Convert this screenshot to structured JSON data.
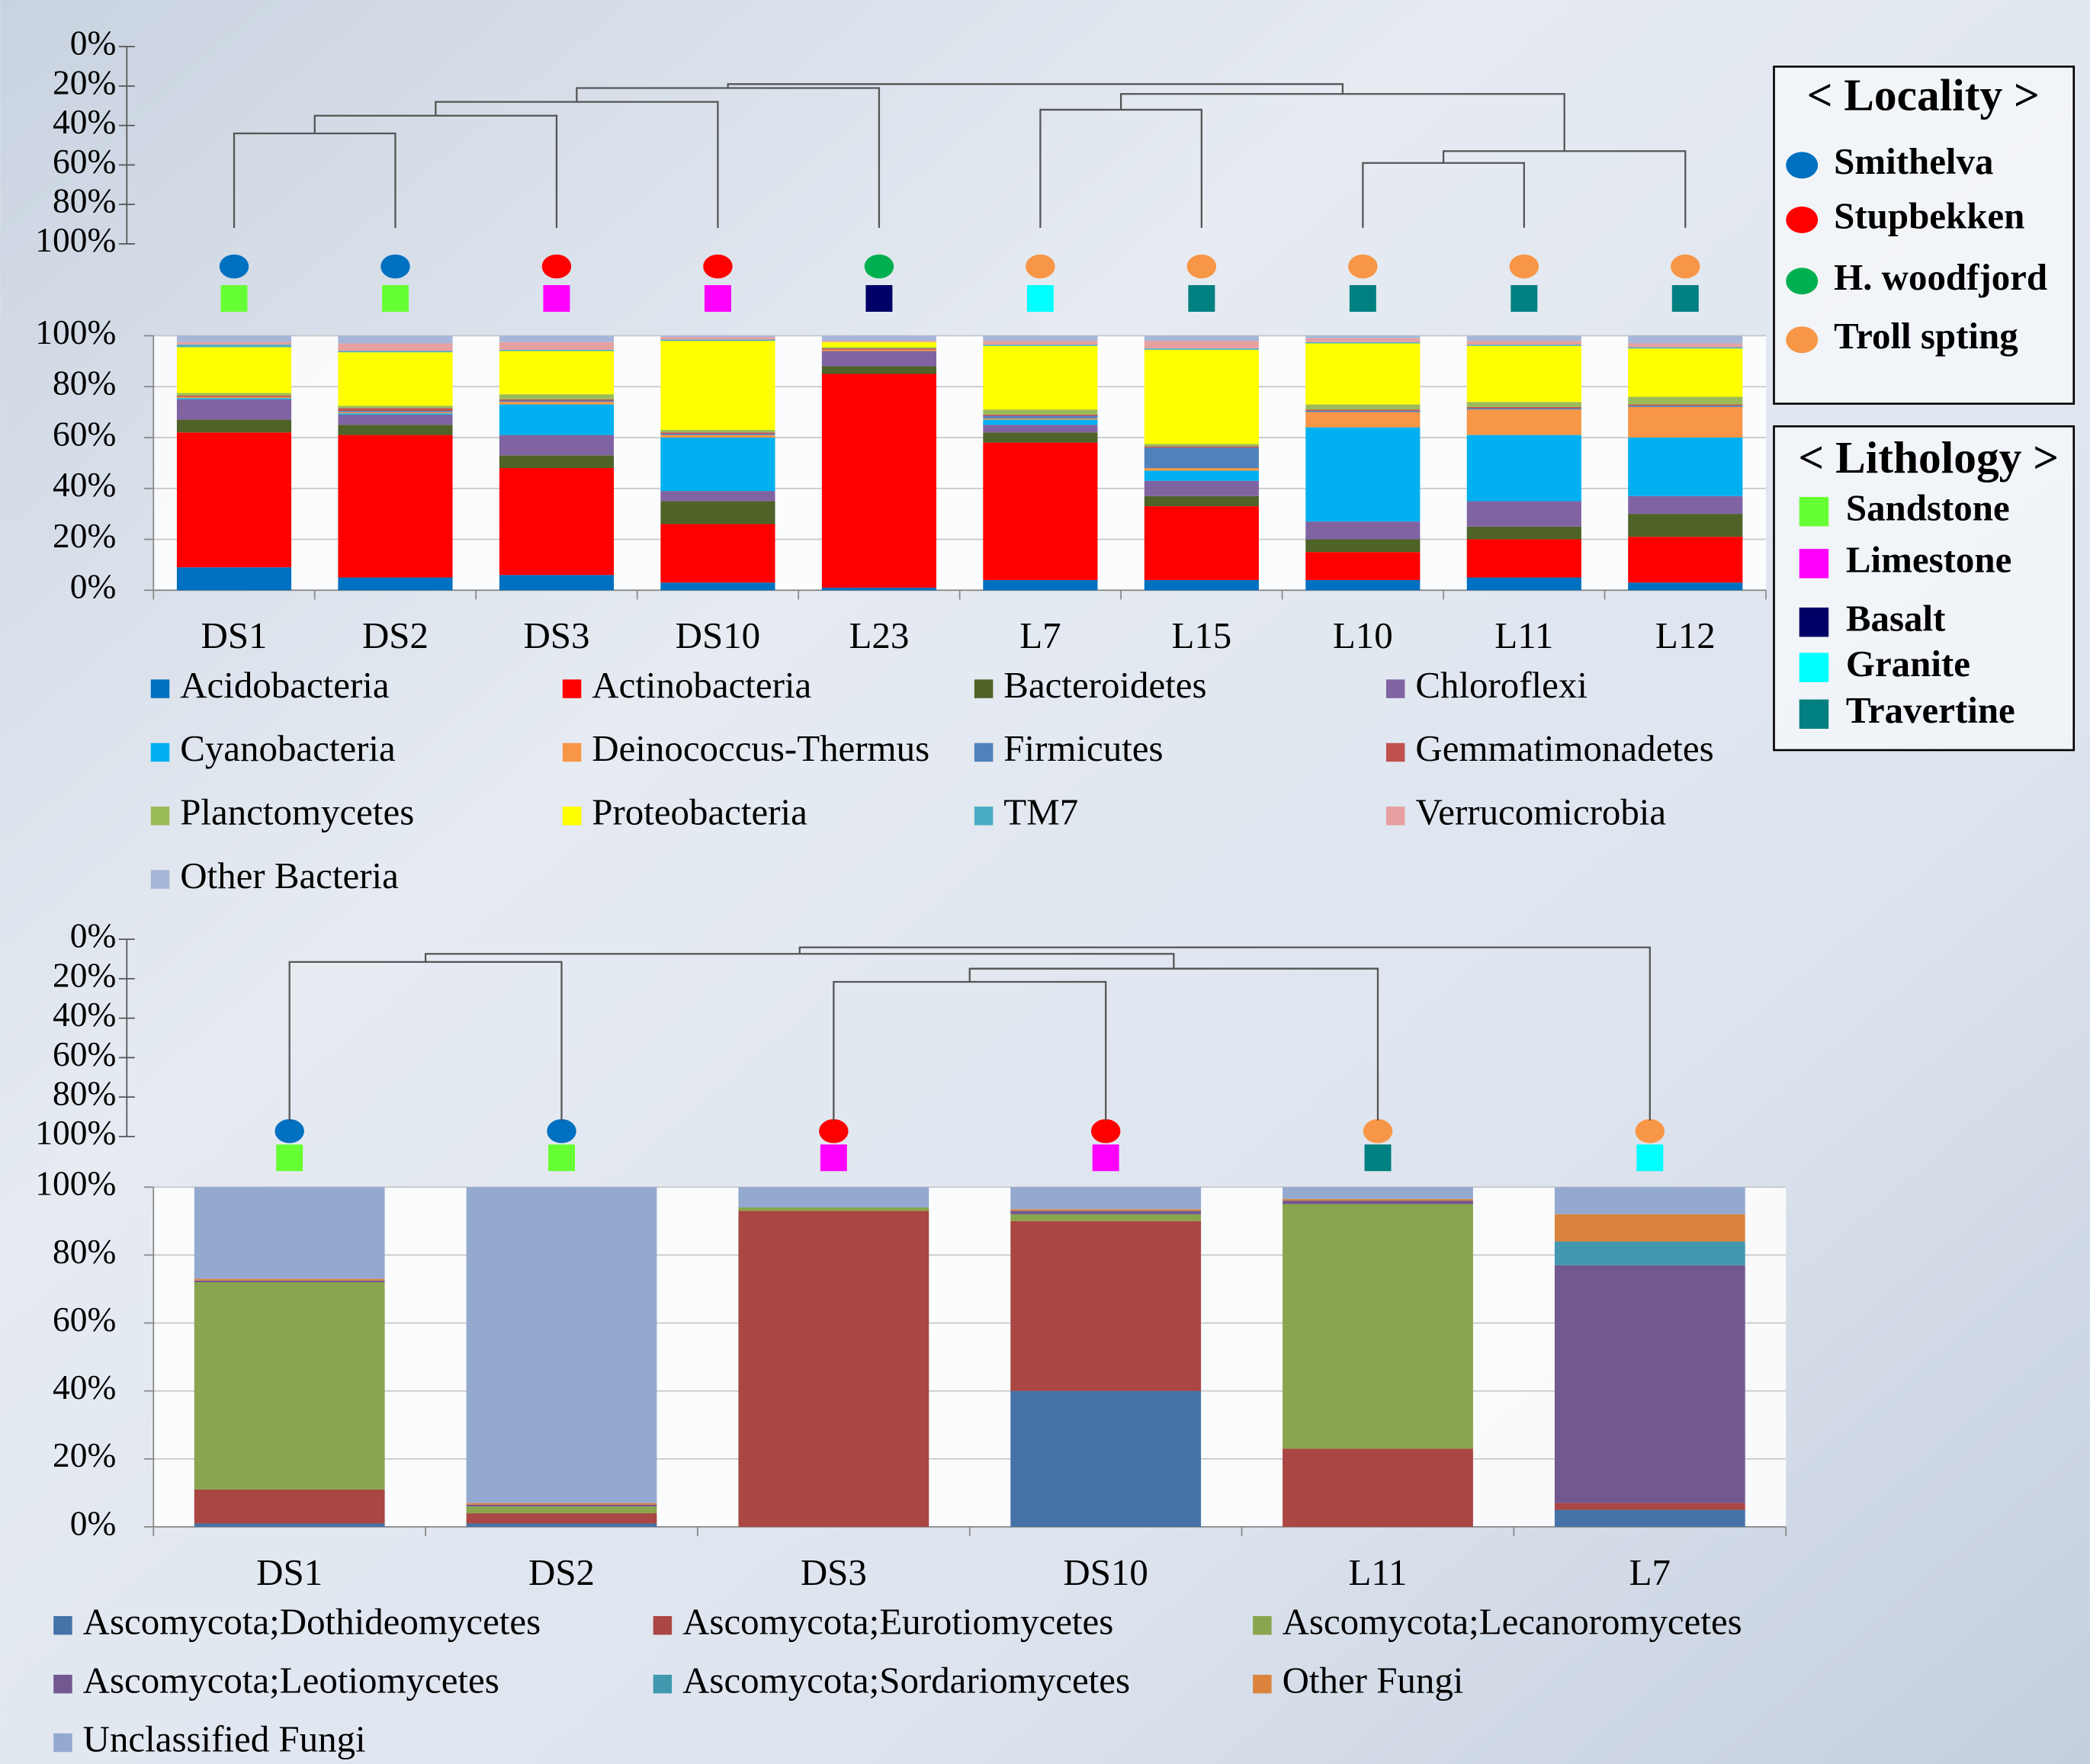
{
  "chart_data": [
    {
      "type": "bar",
      "stacked": true,
      "categories": [
        "DS1",
        "DS2",
        "DS3",
        "DS10",
        "L23",
        "L7",
        "L15",
        "L10",
        "L11",
        "L12"
      ],
      "series": [
        {
          "name": "Acidobacteria",
          "color": "#0070c0",
          "values": [
            9,
            5,
            6,
            3,
            1,
            4,
            4,
            4,
            5,
            3
          ]
        },
        {
          "name": "Actinobacteria",
          "color": "#ff0000",
          "values": [
            53,
            56,
            42,
            23,
            84,
            54,
            29,
            11,
            15,
            18
          ]
        },
        {
          "name": "Bacteroidetes",
          "color": "#4f6228",
          "values": [
            5,
            4,
            5,
            9,
            3,
            4,
            4,
            5,
            5,
            9
          ]
        },
        {
          "name": "Chloroflexi",
          "color": "#8064a2",
          "values": [
            8,
            4,
            8,
            4,
            6,
            3,
            6,
            7,
            10,
            7
          ]
        },
        {
          "name": "Cyanobacteria",
          "color": "#00b0f0",
          "values": [
            0.5,
            0.5,
            12,
            21,
            0,
            2,
            4,
            37,
            26,
            23
          ]
        },
        {
          "name": "Deinococcus-Thermus",
          "color": "#f79646",
          "values": [
            0.5,
            0.5,
            1,
            1,
            0.5,
            0.5,
            1,
            6,
            10,
            12
          ]
        },
        {
          "name": "Firmicutes",
          "color": "#4f81bd",
          "values": [
            0,
            0.5,
            0.5,
            0.5,
            0,
            1,
            8,
            0.5,
            0.5,
            0.5
          ]
        },
        {
          "name": "Gemmatimonadetes",
          "color": "#c0504d",
          "values": [
            0.5,
            1,
            0.5,
            0.5,
            0.5,
            0.5,
            0.5,
            0.5,
            0.5,
            0.5
          ]
        },
        {
          "name": "Planctomycetes",
          "color": "#9bbb59",
          "values": [
            1,
            1,
            2,
            1,
            0.5,
            2,
            1,
            2,
            2,
            3
          ]
        },
        {
          "name": "Proteobacteria",
          "color": "#ffff00",
          "values": [
            18,
            21,
            17,
            35,
            2,
            25,
            37,
            24,
            22,
            19
          ]
        },
        {
          "name": "TM7",
          "color": "#4bacc6",
          "values": [
            1,
            0.5,
            0.5,
            0.5,
            0,
            0.5,
            0.5,
            0.5,
            0.5,
            0.5
          ]
        },
        {
          "name": "Verrucomicrobia",
          "color": "#e6a0a0",
          "values": [
            1,
            3,
            3,
            1,
            0.5,
            1.5,
            3,
            1.5,
            1.5,
            1.5
          ]
        },
        {
          "name": "Other Bacteria",
          "color": "#a6b6d8",
          "values": [
            2.5,
            3,
            2.5,
            0.5,
            2,
            2,
            2,
            1,
            2,
            3
          ]
        }
      ],
      "ylim": [
        0,
        100
      ],
      "yticks": [
        {
          "value": 0,
          "label": "0%"
        },
        {
          "value": 20,
          "label": "20%"
        },
        {
          "value": 40,
          "label": "40%"
        },
        {
          "value": 60,
          "label": "60%"
        },
        {
          "value": 80,
          "label": "80%"
        },
        {
          "value": 100,
          "label": "100%"
        }
      ],
      "grid": true,
      "legend": "bottom",
      "localities": [
        "Smithelva",
        "Smithelva",
        "Stupbekken",
        "Stupbekken",
        "H. woodfjord",
        "Troll spting",
        "Troll spting",
        "Troll spting",
        "Troll spting",
        "Troll spting"
      ],
      "lithologies": [
        "Sandstone",
        "Sandstone",
        "Limestone",
        "Limestone",
        "Basalt",
        "Granite",
        "Travertine",
        "Travertine",
        "Travertine",
        "Travertine"
      ],
      "dendrogram": {
        "ylim": [
          0,
          100
        ],
        "inverted": true,
        "yticks": [
          {
            "value": 0,
            "label": "0%"
          },
          {
            "value": 20,
            "label": "20%"
          },
          {
            "value": 40,
            "label": "40%"
          },
          {
            "value": 60,
            "label": "60%"
          },
          {
            "value": 80,
            "label": "80%"
          },
          {
            "value": 100,
            "label": "100%"
          }
        ],
        "merges": [
          {
            "nodes": [
              0,
              1
            ],
            "height": 44
          },
          {
            "nodes": [
              10,
              2
            ],
            "height": 35
          },
          {
            "nodes": [
              11,
              3
            ],
            "height": 28
          },
          {
            "nodes": [
              12,
              4
            ],
            "height": 21
          },
          {
            "nodes": [
              5,
              6
            ],
            "height": 32
          },
          {
            "nodes": [
              7,
              8
            ],
            "height": 59
          },
          {
            "nodes": [
              15,
              9
            ],
            "height": 53
          },
          {
            "nodes": [
              14,
              16
            ],
            "height": 24
          },
          {
            "nodes": [
              13,
              17
            ],
            "height": 19
          }
        ]
      }
    },
    {
      "type": "bar",
      "stacked": true,
      "categories": [
        "DS1",
        "DS2",
        "DS3",
        "DS10",
        "L11",
        "L7"
      ],
      "series": [
        {
          "name": "Ascomycota;Dothideomycetes",
          "color": "#4572a7",
          "values": [
            1,
            1,
            0,
            40,
            0,
            5
          ]
        },
        {
          "name": "Ascomycota;Eurotiomycetes",
          "color": "#aa4643",
          "values": [
            10,
            3,
            93,
            50,
            23,
            2
          ]
        },
        {
          "name": "Ascomycota;Lecanoromycetes",
          "color": "#89a54e",
          "values": [
            61,
            2,
            1,
            2,
            72,
            0
          ]
        },
        {
          "name": "Ascomycota;Leotiomycetes",
          "color": "#71588f",
          "values": [
            0.5,
            0.5,
            0,
            1,
            1,
            70
          ]
        },
        {
          "name": "Ascomycota;Sordariomycetes",
          "color": "#4198af",
          "values": [
            0,
            0,
            0,
            0,
            0,
            7
          ]
        },
        {
          "name": "Other Fungi",
          "color": "#db843d",
          "values": [
            0.5,
            0.5,
            0,
            0.5,
            0.5,
            8
          ]
        },
        {
          "name": "Unclassified Fungi",
          "color": "#93a9cf",
          "values": [
            27,
            93,
            6,
            6.5,
            3.5,
            8
          ]
        }
      ],
      "ylim": [
        0,
        100
      ],
      "yticks": [
        {
          "value": 0,
          "label": "0%"
        },
        {
          "value": 20,
          "label": "20%"
        },
        {
          "value": 40,
          "label": "40%"
        },
        {
          "value": 60,
          "label": "60%"
        },
        {
          "value": 80,
          "label": "80%"
        },
        {
          "value": 100,
          "label": "100%"
        }
      ],
      "grid": true,
      "legend": "bottom",
      "localities": [
        "Smithelva",
        "Smithelva",
        "Stupbekken",
        "Stupbekken",
        "Troll spting",
        "Troll spting"
      ],
      "lithologies": [
        "Sandstone",
        "Sandstone",
        "Limestone",
        "Limestone",
        "Travertine",
        "Granite"
      ],
      "dendrogram": {
        "ylim": [
          0,
          100
        ],
        "inverted": true,
        "yticks": [
          {
            "value": 0,
            "label": "0%"
          },
          {
            "value": 20,
            "label": "20%"
          },
          {
            "value": 40,
            "label": "40%"
          },
          {
            "value": 60,
            "label": "60%"
          },
          {
            "value": 80,
            "label": "80%"
          },
          {
            "value": 100,
            "label": "100%"
          }
        ],
        "merges": [
          {
            "nodes": [
              0,
              1
            ],
            "height": 11.5
          },
          {
            "nodes": [
              2,
              3
            ],
            "height": 21.6
          },
          {
            "nodes": [
              7,
              4
            ],
            "height": 14.9
          },
          {
            "nodes": [
              6,
              8
            ],
            "height": 7.4
          },
          {
            "nodes": [
              9,
              5
            ],
            "height": 4.1
          }
        ]
      }
    }
  ],
  "locality_legend": {
    "title": "< Locality >",
    "items": [
      {
        "name": "Smithelva",
        "color": "#0070c0"
      },
      {
        "name": "Stupbekken",
        "color": "#ff0000"
      },
      {
        "name": "H. woodfjord",
        "color": "#00b050"
      },
      {
        "name": "Troll spting",
        "color": "#f79646"
      }
    ]
  },
  "lithology_legend": {
    "title": "< Lithology >",
    "items": [
      {
        "name": "Sandstone",
        "color": "#66ff33"
      },
      {
        "name": "Limestone",
        "color": "#ff00ff"
      },
      {
        "name": "Basalt",
        "color": "#000066"
      },
      {
        "name": "Granite",
        "color": "#00ffff"
      },
      {
        "name": "Travertine",
        "color": "#008080"
      }
    ]
  }
}
